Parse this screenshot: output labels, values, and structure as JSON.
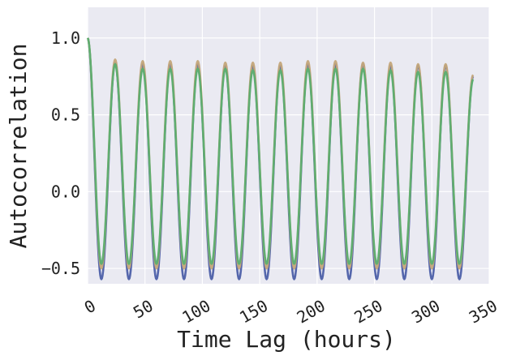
{
  "chart_data": {
    "type": "line",
    "title": "",
    "xlabel": "Time Lag (hours)",
    "ylabel": "Autocorrelation",
    "xlim": [
      0,
      350
    ],
    "ylim": [
      -0.6,
      1.2
    ],
    "x_ticks": [
      0,
      50,
      100,
      150,
      200,
      250,
      300,
      350
    ],
    "x_tick_labels": [
      "0",
      "50",
      "100",
      "150",
      "200",
      "250",
      "300",
      "350"
    ],
    "y_ticks": [
      -0.5,
      0.0,
      0.5,
      1.0
    ],
    "y_tick_labels": [
      "−0.5",
      "0.0",
      "0.5",
      "1.0"
    ],
    "grid": true,
    "background_color": "#EAEAF2",
    "period_hours": 24,
    "x_range": [
      0,
      336
    ],
    "series": [
      {
        "color": "#4C5FA8",
        "peaks": [
          1.0,
          0.84,
          0.83,
          0.83,
          0.83,
          0.82,
          0.82,
          0.82,
          0.83,
          0.83,
          0.83,
          0.82,
          0.82,
          0.82,
          0.75
        ],
        "troughs": [
          -0.57,
          -0.57,
          -0.57,
          -0.57,
          -0.57,
          -0.57,
          -0.57,
          -0.57,
          -0.57,
          -0.57,
          -0.57,
          -0.57,
          -0.57,
          -0.57
        ]
      },
      {
        "color": "#C4A77A",
        "peaks": [
          1.0,
          0.86,
          0.85,
          0.85,
          0.85,
          0.84,
          0.84,
          0.84,
          0.85,
          0.85,
          0.84,
          0.84,
          0.83,
          0.83,
          0.76
        ],
        "troughs": [
          -0.5,
          -0.5,
          -0.5,
          -0.5,
          -0.5,
          -0.5,
          -0.5,
          -0.5,
          -0.5,
          -0.5,
          -0.5,
          -0.5,
          -0.5,
          -0.5
        ]
      },
      {
        "color": "#5BAE6F",
        "peaks": [
          1.0,
          0.83,
          0.8,
          0.8,
          0.8,
          0.8,
          0.79,
          0.79,
          0.8,
          0.8,
          0.8,
          0.79,
          0.78,
          0.78,
          0.73
        ],
        "troughs": [
          -0.47,
          -0.47,
          -0.47,
          -0.47,
          -0.47,
          -0.47,
          -0.47,
          -0.47,
          -0.47,
          -0.47,
          -0.47,
          -0.47,
          -0.47,
          -0.47
        ]
      }
    ]
  }
}
